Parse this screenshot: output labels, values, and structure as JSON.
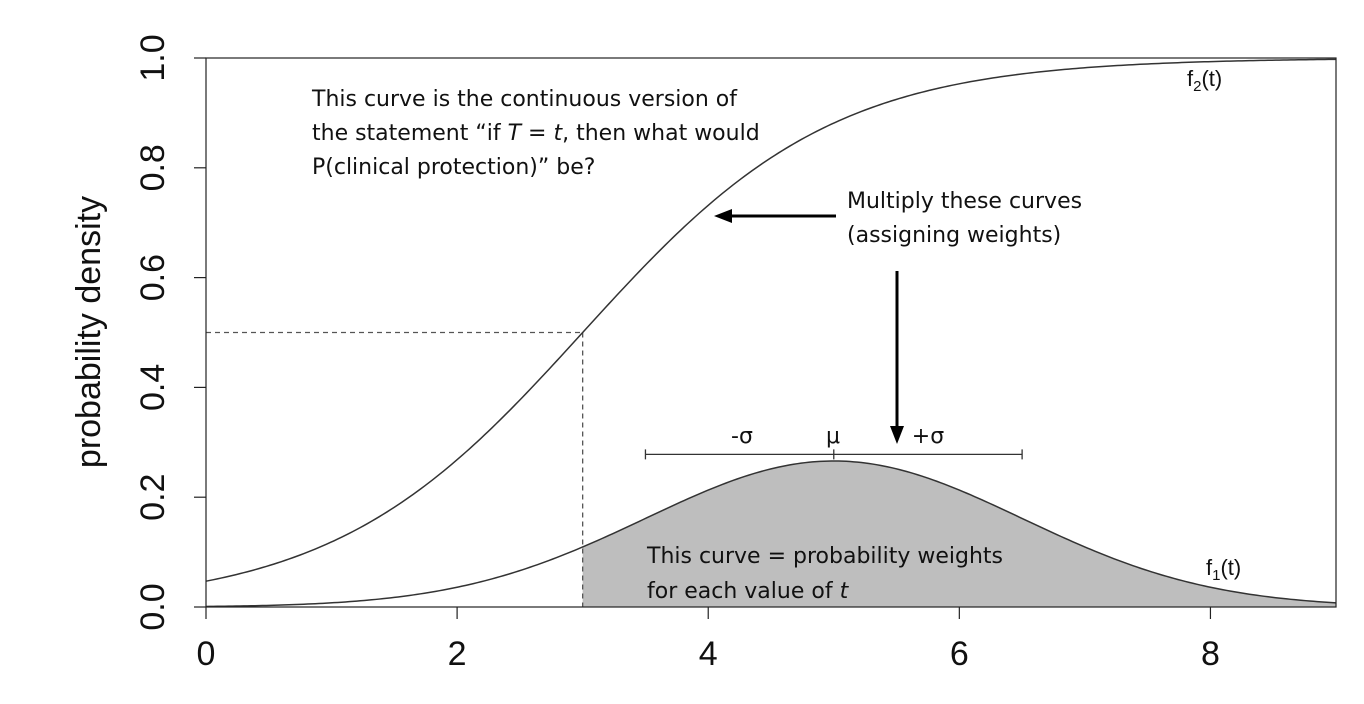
{
  "chart_data": {
    "type": "line",
    "title": "",
    "xlabel": "",
    "ylabel": "probability density",
    "xlim": [
      0,
      9
    ],
    "ylim": [
      0,
      1
    ],
    "x_ticks": [
      0,
      2,
      4,
      6,
      8
    ],
    "y_ticks": [
      0.0,
      0.2,
      0.4,
      0.6,
      0.8,
      1.0
    ],
    "x_tick_labels": [
      "0",
      "2",
      "4",
      "6",
      "8"
    ],
    "y_tick_labels": [
      "0.0",
      "0.2",
      "0.4",
      "0.6",
      "0.8",
      "1.0"
    ],
    "grid": false,
    "series": [
      {
        "name": "f2(t)",
        "kind": "logistic",
        "midpoint": 3,
        "x": [
          0,
          1,
          2,
          3,
          4,
          5,
          6,
          7,
          8,
          9
        ],
        "y": [
          0.047,
          0.12,
          0.27,
          0.5,
          0.73,
          0.88,
          0.95,
          0.98,
          0.99,
          1.0
        ]
      },
      {
        "name": "f1(t)",
        "kind": "normal-density",
        "mean": 5,
        "sd": 1.5,
        "x": [
          0,
          1,
          2,
          3,
          4,
          5,
          6,
          7,
          8,
          9
        ],
        "y": [
          0.001,
          0.007,
          0.036,
          0.11,
          0.213,
          0.266,
          0.213,
          0.11,
          0.036,
          0.007
        ]
      }
    ],
    "shaded_region": {
      "series": "f1(t)",
      "from": 3,
      "to": 9,
      "color": "#bebebe"
    },
    "guide_point": {
      "x": 3,
      "y": 0.5
    },
    "sigma_bracket": {
      "from": 3.5,
      "center": 5,
      "to": 6.5,
      "y": 0.278
    }
  },
  "labels": {
    "f2_main": "f",
    "f2_sub": "2",
    "f2_tail": "(t)",
    "f1_main": "f",
    "f1_sub": "1",
    "f1_tail": "(t)",
    "minus_sigma": "-σ",
    "mu": "μ",
    "plus_sigma": "+σ"
  },
  "annotations": {
    "top_note": {
      "line1": "This curve is the continuous version of",
      "line2a": "the statement “if ",
      "line2b": "T",
      "line2c": " = ",
      "line2d": "t",
      "line2e": ", then what would",
      "line3": "P(clinical protection)” be?"
    },
    "multiply_note": {
      "line1": "Multiply these curves",
      "line2": "(assigning weights)"
    },
    "weights_note": {
      "line1": "This curve = probability weights",
      "line2a": "for each value of ",
      "line2b": "t"
    }
  },
  "colors": {
    "shade": "#bebebe",
    "curve": "#333333",
    "arrow": "#000000"
  }
}
